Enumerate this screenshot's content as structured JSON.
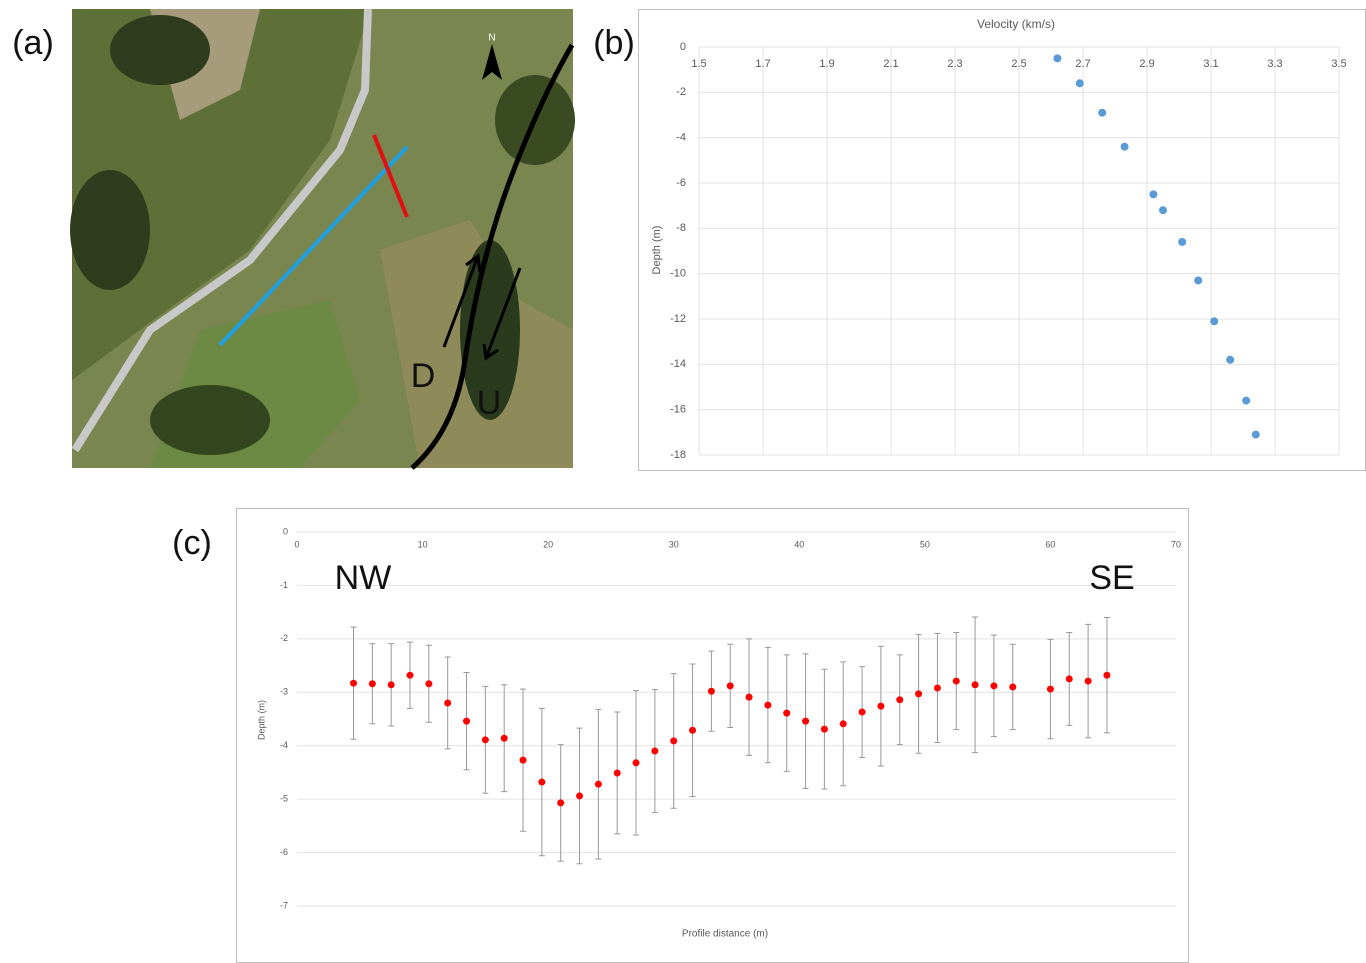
{
  "panel_labels": [
    "(a)",
    "(b)",
    "(c)"
  ],
  "map": {
    "north": "N",
    "labels": [
      "D",
      "U"
    ]
  },
  "chart_data": [
    {
      "type": "scatter",
      "title": "Velocity (km/s)",
      "y_label": "Depth (m)",
      "series": [
        {
          "color": "#5b9bd5",
          "x": [
            2.62,
            2.69,
            2.76,
            2.83,
            2.92,
            2.95,
            3.01,
            3.06,
            3.11,
            3.16,
            3.21,
            3.24
          ],
          "values": [
            -0.5,
            -1.6,
            -2.9,
            -4.4,
            -6.5,
            -7.2,
            -8.6,
            -10.3,
            -12.1,
            -13.8,
            -15.6,
            -17.1
          ]
        }
      ],
      "xlim": [
        1.5,
        3.5
      ],
      "xticks": [
        1.5,
        1.7,
        1.9,
        2.1,
        2.3,
        2.5,
        2.7,
        2.9,
        3.1,
        3.3,
        3.5
      ],
      "ylim": [
        -18,
        0
      ],
      "yticks": [
        0,
        -2,
        -4,
        -6,
        -8,
        -10,
        -12,
        -14,
        -16,
        -18
      ],
      "grid": true
    },
    {
      "type": "scatter",
      "x_label": "Profile distance (m)",
      "y_label": "Depth (m)",
      "annotations": [
        "NW",
        "SE"
      ],
      "series": [
        {
          "color": "#ff0000",
          "error_color": "#999999",
          "x": [
            4.5,
            6,
            7.5,
            9,
            10.5,
            12,
            13.5,
            15,
            16.5,
            18,
            19.5,
            21,
            22.5,
            24,
            25.5,
            27,
            28.5,
            30,
            31.5,
            33,
            34.5,
            36,
            37.5,
            39,
            40.5,
            42,
            43.5,
            45,
            46.5,
            48,
            49.5,
            51,
            52.5,
            54,
            55.5,
            57,
            60,
            61.5,
            63,
            64.5
          ],
          "values": [
            -2.83,
            -2.84,
            -2.86,
            -2.68,
            -2.84,
            -3.2,
            -3.54,
            -3.89,
            -3.86,
            -4.27,
            -4.68,
            -5.07,
            -4.94,
            -4.72,
            -4.51,
            -4.32,
            -4.1,
            -3.91,
            -3.71,
            -2.98,
            -2.88,
            -3.09,
            -3.24,
            -3.39,
            -3.54,
            -3.69,
            -3.59,
            -3.37,
            -3.26,
            -3.14,
            -3.03,
            -2.92,
            -2.79,
            -2.86,
            -2.88,
            -2.9,
            -2.94,
            -2.75,
            -2.79,
            -2.68
          ],
          "error": [
            1.05,
            0.75,
            0.77,
            0.62,
            0.72,
            0.86,
            0.91,
            1.0,
            1.0,
            1.33,
            1.38,
            1.09,
            1.27,
            1.4,
            1.14,
            1.35,
            1.15,
            1.26,
            1.24,
            0.75,
            0.78,
            1.09,
            1.08,
            1.09,
            1.26,
            1.12,
            1.16,
            0.85,
            1.12,
            0.84,
            1.11,
            1.02,
            0.91,
            1.27,
            0.95,
            0.8,
            0.93,
            0.87,
            1.06,
            1.08
          ]
        }
      ],
      "xlim": [
        0,
        70
      ],
      "xticks": [
        0,
        10,
        20,
        30,
        40,
        50,
        60,
        70
      ],
      "ylim": [
        -7,
        0
      ],
      "yticks": [
        0,
        -1,
        -2,
        -3,
        -4,
        -5,
        -6,
        -7
      ],
      "grid": true
    }
  ]
}
